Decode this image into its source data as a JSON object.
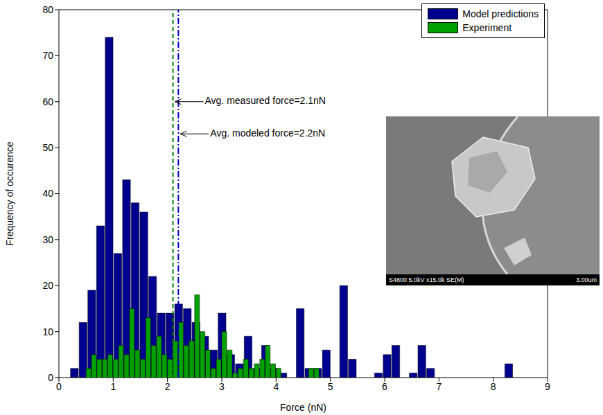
{
  "chart_data": {
    "type": "histogram",
    "xlabel": "Force (nN)",
    "ylabel": "Frequency of occurence",
    "xlim": [
      0,
      9
    ],
    "ylim": [
      0,
      80
    ],
    "xticks": [
      0,
      1,
      2,
      3,
      4,
      5,
      6,
      7,
      8,
      9
    ],
    "yticks": [
      0,
      10,
      20,
      30,
      40,
      50,
      60,
      70,
      80
    ],
    "grid": false,
    "legend": "upper right",
    "series": [
      {
        "name": "Model predictions",
        "color": "#00008f",
        "bins": [
          0.2,
          0.36,
          0.52,
          0.68,
          0.84,
          1.0,
          1.16,
          1.32,
          1.48,
          1.64,
          1.8,
          1.96,
          2.12,
          2.28,
          2.44,
          2.6,
          2.76,
          2.92,
          3.08,
          3.24,
          3.4,
          3.56,
          3.72,
          3.88,
          4.04,
          4.2,
          4.36,
          4.52,
          4.68,
          4.84,
          5.0,
          5.16,
          5.32,
          5.48,
          5.64,
          5.8,
          5.96,
          6.12,
          6.28,
          6.44,
          6.6,
          6.76,
          6.92,
          7.08,
          7.24,
          7.4,
          7.56,
          7.72,
          7.88,
          8.04,
          8.2,
          8.36
        ],
        "values": [
          2,
          12,
          19,
          33,
          74,
          27,
          43,
          38,
          36,
          22,
          14,
          14,
          16,
          15,
          12,
          9,
          6,
          14,
          5,
          3,
          9,
          2,
          7,
          2,
          1,
          0,
          15,
          2,
          2,
          6,
          0,
          20,
          4,
          0,
          0,
          1,
          5,
          7,
          0,
          1,
          7,
          2,
          0,
          0,
          0,
          0,
          0,
          0,
          0,
          0,
          3
        ]
      },
      {
        "name": "Experiment",
        "color": "#00a000",
        "bins": [
          0.5,
          0.6,
          0.7,
          0.8,
          0.9,
          1.0,
          1.1,
          1.2,
          1.3,
          1.4,
          1.5,
          1.6,
          1.7,
          1.8,
          1.9,
          2.0,
          2.1,
          2.2,
          2.3,
          2.4,
          2.5,
          2.6,
          2.7,
          2.8,
          2.9,
          3.0,
          3.1,
          3.2,
          3.3,
          3.4,
          3.5,
          3.6,
          3.7,
          3.8,
          3.9,
          4.0,
          4.1,
          4.2,
          4.3,
          4.4,
          4.5,
          4.6,
          4.7,
          4.8
        ],
        "values": [
          2,
          5,
          4,
          4,
          5,
          4,
          7,
          5,
          15,
          6,
          4,
          13,
          7,
          9,
          5,
          4,
          8,
          12,
          7,
          8,
          18,
          10,
          6,
          2,
          4,
          10,
          6,
          1,
          2,
          4,
          2,
          3,
          4,
          7,
          3,
          2,
          0,
          0,
          0,
          0,
          0,
          2,
          2
        ]
      }
    ],
    "reference_lines": [
      {
        "x": 2.1,
        "color": "#008000",
        "line_style": "dashed"
      },
      {
        "x": 2.2,
        "color": "#0000c0",
        "line_style": "dashdot"
      }
    ],
    "annotations": [
      {
        "text": "Avg. measured force=2.1nN",
        "x": 2.1,
        "y": 60
      },
      {
        "text": "Avg. modeled force=2.2nN",
        "x": 2.2,
        "y": 53
      }
    ],
    "inset_texts": [
      "S4800 5.0kV x15.0k SE(M)",
      "3.00um"
    ]
  }
}
